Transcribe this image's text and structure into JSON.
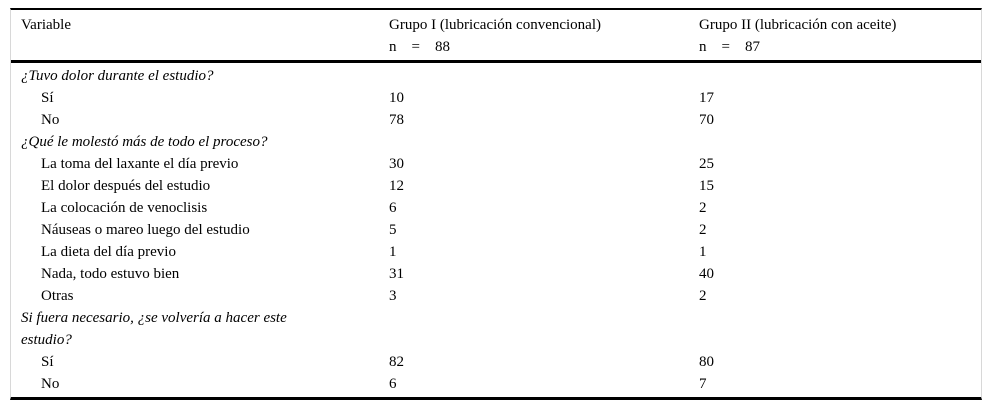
{
  "table": {
    "header": {
      "variable": "Variable",
      "group1": {
        "title": "Grupo I (lubricación convencional)",
        "n_label": "n",
        "eq": "=",
        "n_value": "88"
      },
      "group2": {
        "title": "Grupo II (lubricación con aceite)",
        "n_label": "n",
        "eq": "=",
        "n_value": "87"
      }
    },
    "rows": [
      {
        "type": "section",
        "label": "¿Tuvo dolor durante el estudio?",
        "g1": "",
        "g2": ""
      },
      {
        "type": "item",
        "label": "Sí",
        "g1": "10",
        "g2": "17"
      },
      {
        "type": "item",
        "label": "No",
        "g1": "78",
        "g2": "70"
      },
      {
        "type": "section",
        "label": "¿Qué le molestó más de todo el proceso?",
        "g1": "",
        "g2": ""
      },
      {
        "type": "item",
        "label": "La toma del laxante el día previo",
        "g1": "30",
        "g2": "25"
      },
      {
        "type": "item",
        "label": "El dolor después del estudio",
        "g1": "12",
        "g2": "15"
      },
      {
        "type": "item",
        "label": "La colocación de venoclisis",
        "g1": "6",
        "g2": "2"
      },
      {
        "type": "item",
        "label": "Náuseas o mareo luego del estudio",
        "g1": "5",
        "g2": "2"
      },
      {
        "type": "item",
        "label": "La dieta del día previo",
        "g1": "1",
        "g2": "1"
      },
      {
        "type": "item",
        "label": "Nada, todo estuvo bien",
        "g1": "31",
        "g2": "40"
      },
      {
        "type": "item",
        "label": "Otras",
        "g1": "3",
        "g2": "2"
      },
      {
        "type": "section",
        "label": "Si fuera necesario, ¿se volvería a hacer este estudio?",
        "g1": "",
        "g2": ""
      },
      {
        "type": "item",
        "label": "Sí",
        "g1": "82",
        "g2": "80"
      },
      {
        "type": "item",
        "label": "No",
        "g1": "6",
        "g2": "7"
      }
    ]
  }
}
